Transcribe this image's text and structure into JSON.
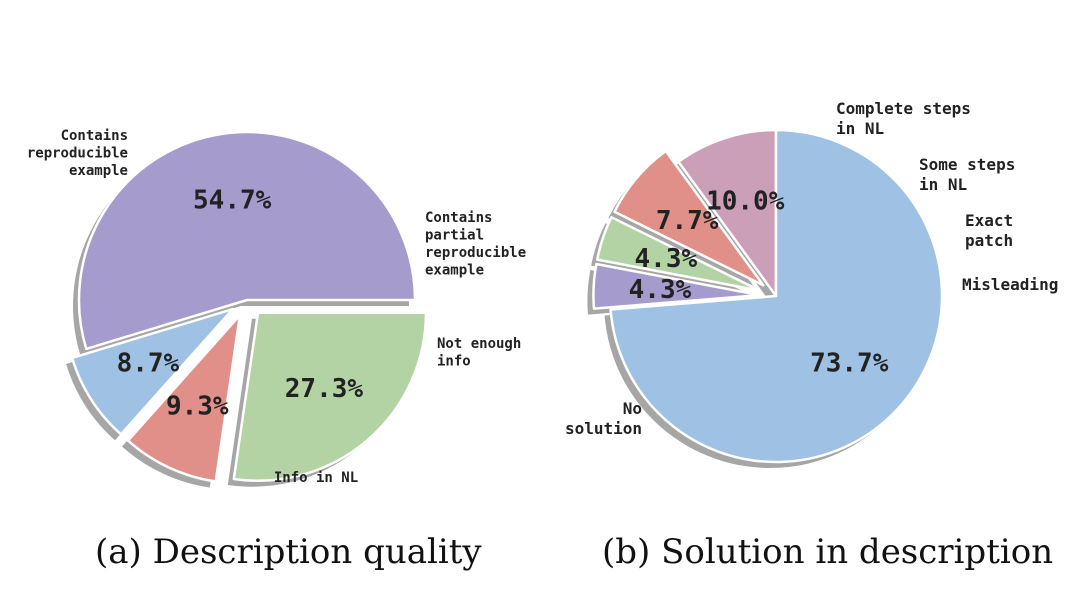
{
  "chart_data": [
    {
      "type": "pie",
      "title": "(a) Description quality",
      "slices": [
        {
          "label": "Contains reproducible example",
          "value": 54.7,
          "display": "54.7%",
          "color": "#a59bcc",
          "label_lines": [
            "Contains",
            "reproducible",
            "example"
          ]
        },
        {
          "label": "Contains partial reproducible example",
          "value": 8.7,
          "display": "8.7%",
          "color": "#9ec1e4",
          "label_lines": [
            "Contains",
            "partial",
            "reproducible",
            "example"
          ]
        },
        {
          "label": "Not enough info",
          "value": 9.3,
          "display": "9.3%",
          "color": "#e08f89",
          "label_lines": [
            "Not enough",
            "info"
          ]
        },
        {
          "label": "Info in NL",
          "value": 27.3,
          "display": "27.3%",
          "color": "#b4d3a4",
          "label_lines": [
            "Info in NL"
          ]
        }
      ]
    },
    {
      "type": "pie",
      "title": "(b) Solution in description",
      "slices": [
        {
          "label": "Complete steps in NL",
          "value": 10.0,
          "display": "10.0%",
          "color": "#cc9fb8",
          "label_lines": [
            "Complete steps",
            "in NL"
          ]
        },
        {
          "label": "Some steps in NL",
          "value": 7.7,
          "display": "7.7%",
          "color": "#e08f89",
          "label_lines": [
            "Some steps",
            "in NL"
          ]
        },
        {
          "label": "Exact patch",
          "value": 4.3,
          "display": "4.3%",
          "color": "#b4d3a4",
          "label_lines": [
            "Exact",
            "patch"
          ]
        },
        {
          "label": "Misleading",
          "value": 4.3,
          "display": "4.3%",
          "color": "#a59bcc",
          "label_lines": [
            "Misleading"
          ]
        },
        {
          "label": "No solution",
          "value": 73.7,
          "display": "73.7%",
          "color": "#9ec1e4",
          "label_lines": [
            "No",
            "solution"
          ]
        }
      ]
    }
  ]
}
